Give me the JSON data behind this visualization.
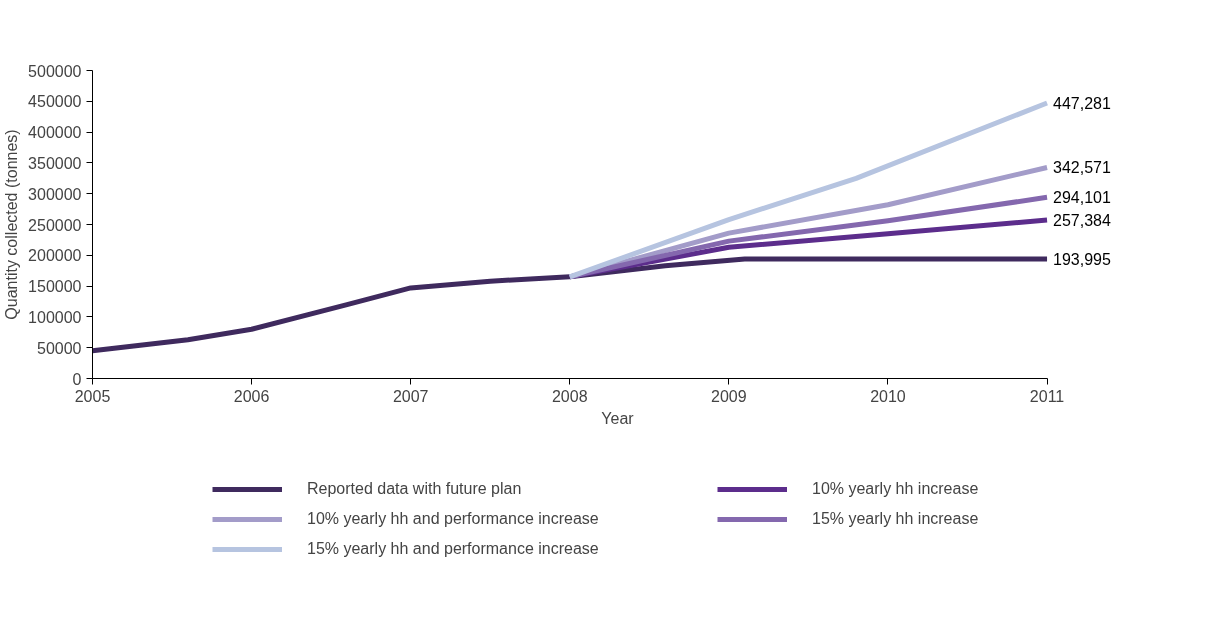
{
  "chart_data": {
    "type": "line",
    "xlabel": "Year",
    "ylabel": "Quantity collected (tonnes)",
    "xlim": [
      2005,
      2011
    ],
    "ylim": [
      0,
      500000
    ],
    "xticks": [
      2005,
      2006,
      2007,
      2008,
      2009,
      2010,
      2011
    ],
    "yticks": [
      0,
      50000,
      100000,
      150000,
      200000,
      250000,
      300000,
      350000,
      400000,
      450000,
      500000
    ],
    "grid": false,
    "legend": "bottom",
    "marker": "none",
    "line_style": "solid",
    "series": [
      {
        "name": "Reported data with future plan",
        "color": "#3f2a5e",
        "x": [
          2005,
          2005.6,
          2006,
          2006.6,
          2007,
          2007.5,
          2008,
          2008.6,
          2009.1,
          2010,
          2011
        ],
        "values": [
          45000,
          63000,
          80000,
          120000,
          147000,
          158000,
          165000,
          183000,
          193995,
          193995,
          193995
        ],
        "value_labels": [
          null,
          null,
          null,
          null,
          null,
          null,
          null,
          null,
          null,
          null,
          "193,995"
        ]
      },
      {
        "name": "10% yearly hh increase",
        "color": "#5c2d8c",
        "x": [
          2008,
          2009,
          2010,
          2011
        ],
        "values": [
          165000,
          213000,
          235000,
          257384
        ],
        "value_labels": [
          null,
          null,
          null,
          "257,384"
        ]
      },
      {
        "name": "10% yearly hh and performance increase",
        "color": "#a39cc9",
        "x": [
          2008,
          2009,
          2010,
          2011
        ],
        "values": [
          165000,
          236000,
          282000,
          342571
        ],
        "value_labels": [
          null,
          null,
          null,
          "342,571"
        ]
      },
      {
        "name": "15% yearly hh increase",
        "color": "#8468ae",
        "x": [
          2008,
          2009,
          2010,
          2011
        ],
        "values": [
          165000,
          223000,
          256000,
          294101
        ],
        "value_labels": [
          null,
          null,
          null,
          "294,101"
        ]
      },
      {
        "name": "15% yearly hh and performance increase",
        "color": "#b6c4e0",
        "x": [
          2008,
          2009,
          2009.8,
          2011
        ],
        "values": [
          165000,
          258000,
          325000,
          447281
        ],
        "value_labels": [
          null,
          null,
          null,
          "447,281"
        ]
      }
    ]
  }
}
